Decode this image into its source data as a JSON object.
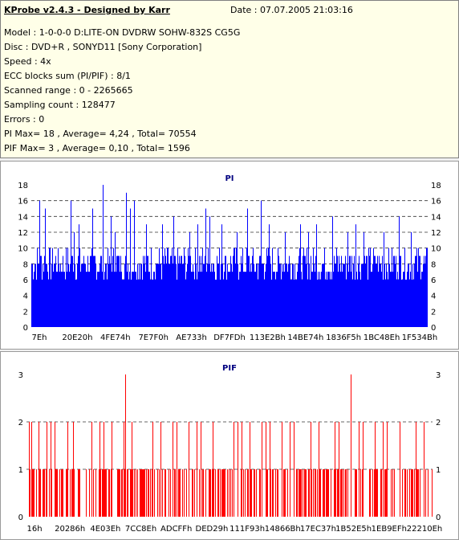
{
  "info": {
    "title": "KProbe v2.4.3 - Designed by Karr",
    "date": "Date : 07.07.2005 21:03:16",
    "lines": [
      "Model : 1-0-0-0 D:LITE-ON DVDRW SOHW-832S  CG5G",
      "Disc : DVD+R , SONYD11 [Sony Corporation]",
      "Speed : 4x",
      "ECC blocks sum (PI/PIF) : 8/1",
      "Scanned range : 0 - 2265665",
      "Sampling count : 128477",
      "Errors : 0",
      "PI Max= 18 , Average= 4,24 , Total= 70554",
      "PIF Max= 3 , Average= 0,10 , Total= 1596"
    ]
  },
  "colors": {
    "pi": "#0000ff",
    "pif": "#ff0000",
    "title": "#000080"
  },
  "chart_data": [
    {
      "type": "bar",
      "title": "PI",
      "ylim": [
        0,
        18
      ],
      "yticks": [
        0,
        2,
        4,
        6,
        8,
        10,
        12,
        14,
        16,
        18
      ],
      "grid": true,
      "xtick_labels": [
        "7Eh",
        "20E20h",
        "4FE74h",
        "7E7F0h",
        "AE733h",
        "DF7FDh",
        "113E2Bh",
        "14BE74h",
        "1836F5h",
        "1BC48Eh",
        "1F534Bh"
      ],
      "baseline_range": [
        6,
        10
      ],
      "peaks": [
        [
          0.02,
          16
        ],
        [
          0.035,
          15
        ],
        [
          0.1,
          16
        ],
        [
          0.108,
          12
        ],
        [
          0.12,
          13
        ],
        [
          0.155,
          15
        ],
        [
          0.18,
          18
        ],
        [
          0.2,
          14
        ],
        [
          0.21,
          12
        ],
        [
          0.24,
          17
        ],
        [
          0.25,
          15
        ],
        [
          0.26,
          16
        ],
        [
          0.29,
          13
        ],
        [
          0.33,
          13
        ],
        [
          0.36,
          14
        ],
        [
          0.4,
          12
        ],
        [
          0.42,
          13
        ],
        [
          0.44,
          15
        ],
        [
          0.45,
          14
        ],
        [
          0.48,
          13
        ],
        [
          0.52,
          12
        ],
        [
          0.545,
          15
        ],
        [
          0.58,
          16
        ],
        [
          0.6,
          13
        ],
        [
          0.64,
          12
        ],
        [
          0.68,
          13
        ],
        [
          0.7,
          12
        ],
        [
          0.72,
          13
        ],
        [
          0.76,
          14
        ],
        [
          0.8,
          12
        ],
        [
          0.82,
          13
        ],
        [
          0.84,
          12
        ],
        [
          0.89,
          12
        ],
        [
          0.93,
          14
        ],
        [
          0.96,
          12
        ]
      ],
      "max": 18,
      "average": 4.24,
      "total": 70554
    },
    {
      "type": "bar",
      "title": "PIF",
      "ylim": [
        0,
        3
      ],
      "yticks": [
        0,
        1,
        2,
        3
      ],
      "grid": true,
      "xtick_labels": [
        "16h",
        "20286h",
        "4E03Eh",
        "7CC8Eh",
        "ADCFFh",
        "DED29h",
        "111F93h",
        "14866Bh",
        "17EC37h",
        "1B52E5h",
        "1EB9EFh",
        "22210Eh"
      ],
      "spikes_value_2_positions": [
        0.005,
        0.012,
        0.03,
        0.05,
        0.06,
        0.07,
        0.1,
        0.115,
        0.16,
        0.18,
        0.19,
        0.21,
        0.24,
        0.26,
        0.31,
        0.33,
        0.36,
        0.37,
        0.4,
        0.42,
        0.43,
        0.46,
        0.51,
        0.52,
        0.53,
        0.55,
        0.58,
        0.59,
        0.6,
        0.63,
        0.65,
        0.66,
        0.7,
        0.72,
        0.76,
        0.77,
        0.82,
        0.83,
        0.86,
        0.88,
        0.89,
        0.92,
        0.96,
        0.98
      ],
      "spikes_value_3_positions": [
        0.243,
        0.8
      ],
      "max": 3,
      "average": 0.1,
      "total": 1596
    }
  ]
}
